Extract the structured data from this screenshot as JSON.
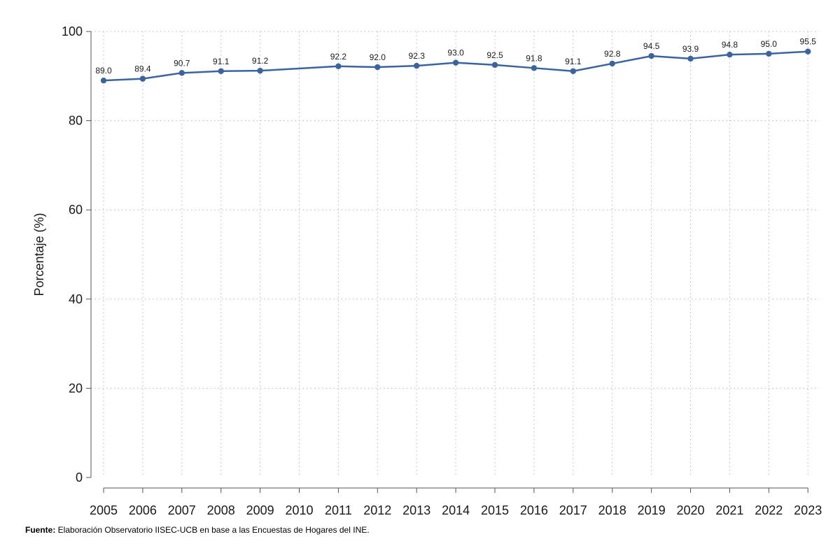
{
  "chart_data": {
    "type": "line",
    "title": "",
    "xlabel": "",
    "ylabel": "Porcentaje (%)",
    "x": [
      "2005",
      "2006",
      "2007",
      "2008",
      "2009",
      "2010",
      "2011",
      "2012",
      "2013",
      "2014",
      "2015",
      "2016",
      "2017",
      "2018",
      "2019",
      "2020",
      "2021",
      "2022",
      "2023"
    ],
    "series": [
      {
        "values": [
          89.0,
          89.4,
          90.7,
          91.1,
          91.2,
          null,
          92.2,
          92.0,
          92.3,
          93.0,
          92.5,
          91.8,
          91.1,
          92.8,
          94.5,
          93.9,
          94.8,
          95.0,
          95.5
        ],
        "labels": [
          "89.0",
          "89.4",
          "90.7",
          "91.1",
          "91.2",
          "",
          "92.2",
          "92.0",
          "92.3",
          "93.0",
          "92.5",
          "91.8",
          "91.1",
          "92.8",
          "94.5",
          "93.9",
          "94.8",
          "95.0",
          "95.5"
        ],
        "color": "#3a64a0"
      }
    ],
    "ylim": [
      0,
      100
    ],
    "yticks": [
      0,
      20,
      40,
      60,
      80,
      100
    ],
    "grid": true
  },
  "source": {
    "prefix": "Fuente:",
    "text": " Elaboración Observatorio IISEC-UCB en base a las Encuestas de Hogares del INE."
  }
}
